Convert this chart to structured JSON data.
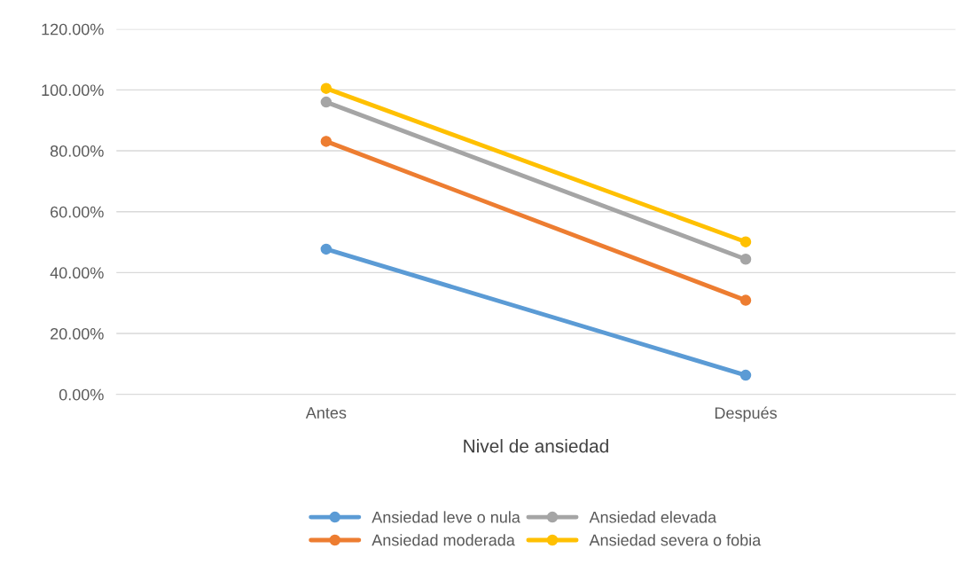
{
  "chart_data": {
    "type": "line",
    "xlabel": "Nivel de ansiedad",
    "categories": [
      "Antes",
      "Después"
    ],
    "series": [
      {
        "name": "Ansiedad leve o nula",
        "color": "#5b9bd5",
        "values": [
          47.7,
          6.3
        ]
      },
      {
        "name": "Ansiedad moderada",
        "color": "#ed7d31",
        "values": [
          83.1,
          30.9
        ]
      },
      {
        "name": "Ansiedad elevada",
        "color": "#a5a5a5",
        "values": [
          96.0,
          44.4
        ]
      },
      {
        "name": "Ansiedad severa o fobia",
        "color": "#ffc000",
        "values": [
          100.5,
          50.1
        ]
      }
    ],
    "ylim": [
      0,
      120
    ],
    "yticks": [
      {
        "value": 0,
        "label": "0.00%"
      },
      {
        "value": 20,
        "label": "20.00%"
      },
      {
        "value": 40,
        "label": "40.00%"
      },
      {
        "value": 60,
        "label": "60.00%"
      },
      {
        "value": 80,
        "label": "80.00%"
      },
      {
        "value": 100,
        "label": "100.00%"
      },
      {
        "value": 120,
        "label": "120.00%"
      }
    ],
    "grid": "y",
    "legend": "bottom",
    "marker": "circle",
    "line_style": "solid"
  }
}
